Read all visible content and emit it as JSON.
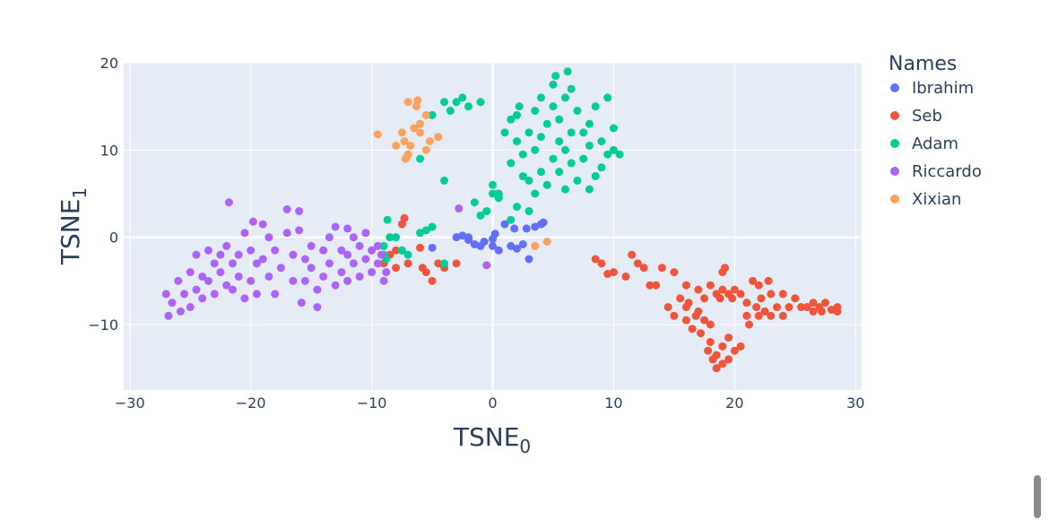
{
  "chart_data": {
    "type": "scatter",
    "title": "",
    "xlabel": "TSNE",
    "xlabel_subscript": "0",
    "ylabel": "TSNE",
    "ylabel_subscript": "1",
    "xlim": [
      -30.5,
      30.5
    ],
    "ylim": [
      -17.5,
      20
    ],
    "xticks": [
      -30,
      -20,
      -10,
      0,
      10,
      20,
      30
    ],
    "xtick_labels": [
      "−30",
      "−20",
      "−10",
      "0",
      "10",
      "20",
      "30"
    ],
    "yticks": [
      -10,
      0,
      10,
      20
    ],
    "ytick_labels": [
      "−10",
      "0",
      "10",
      "20"
    ],
    "grid": true,
    "legend": {
      "title": "Names",
      "placement": "right"
    },
    "plot_background": "#e5ecf6",
    "series": [
      {
        "name": "Ibrahim",
        "color": "#636efa",
        "points": [
          [
            -5,
            -1.2
          ],
          [
            -3,
            0
          ],
          [
            -2.5,
            0.2
          ],
          [
            -2,
            0
          ],
          [
            -1.5,
            -0.8
          ],
          [
            -1,
            -1
          ],
          [
            -0.7,
            -0.5
          ],
          [
            0,
            -1
          ],
          [
            0.2,
            0.4
          ],
          [
            0.5,
            -1.5
          ],
          [
            1,
            1.5
          ],
          [
            1.5,
            -1
          ],
          [
            1.8,
            1
          ],
          [
            2,
            -1.3
          ],
          [
            2.5,
            -0.8
          ],
          [
            2.8,
            1
          ],
          [
            3,
            -2.5
          ],
          [
            3.5,
            1.2
          ],
          [
            4,
            1.5
          ],
          [
            4.2,
            1.7
          ],
          [
            -2,
            -0.3
          ],
          [
            0,
            -0.2
          ]
        ]
      },
      {
        "name": "Seb",
        "color": "#ef553b",
        "points": [
          [
            -9,
            -3
          ],
          [
            -8.5,
            -2
          ],
          [
            -8,
            -1.5
          ],
          [
            -8,
            -3.5
          ],
          [
            -7.5,
            1.5
          ],
          [
            -7.3,
            2.2
          ],
          [
            -7.5,
            -1.5
          ],
          [
            -7,
            -3
          ],
          [
            -6,
            -1.2
          ],
          [
            -5.8,
            -3.5
          ],
          [
            -5.5,
            -4
          ],
          [
            -5,
            -5
          ],
          [
            -4.5,
            -3
          ],
          [
            -4,
            -3.5
          ],
          [
            -3,
            -3
          ],
          [
            8.5,
            -2.5
          ],
          [
            9,
            -3
          ],
          [
            9.5,
            -4.2
          ],
          [
            10,
            -4
          ],
          [
            11,
            -4.5
          ],
          [
            11.5,
            -2
          ],
          [
            12,
            -3
          ],
          [
            12.5,
            -3.5
          ],
          [
            13,
            -5.5
          ],
          [
            13.5,
            -5.5
          ],
          [
            14,
            -3.5
          ],
          [
            14.5,
            -8
          ],
          [
            15,
            -4
          ],
          [
            15,
            -9
          ],
          [
            15.5,
            -7
          ],
          [
            16,
            -5.5
          ],
          [
            16,
            -8
          ],
          [
            16,
            -9.5
          ],
          [
            16.2,
            -7.5
          ],
          [
            16.5,
            -10.5
          ],
          [
            16.8,
            -9
          ],
          [
            17,
            -6
          ],
          [
            17,
            -8.5
          ],
          [
            17.2,
            -11
          ],
          [
            17.5,
            -7
          ],
          [
            17.5,
            -9.5
          ],
          [
            17.8,
            -13
          ],
          [
            18,
            -5.5
          ],
          [
            18,
            -10
          ],
          [
            18,
            -12
          ],
          [
            18.2,
            -14
          ],
          [
            18.5,
            -6.5
          ],
          [
            18.5,
            -13.5
          ],
          [
            18.5,
            -15
          ],
          [
            18.8,
            -7
          ],
          [
            19,
            -4
          ],
          [
            19,
            -6
          ],
          [
            19,
            -12.5
          ],
          [
            19,
            -14.5
          ],
          [
            19.2,
            -3.5
          ],
          [
            19.5,
            -6.5
          ],
          [
            19.5,
            -11.5
          ],
          [
            19.5,
            -14
          ],
          [
            19.8,
            -7
          ],
          [
            20,
            -6
          ],
          [
            20,
            -13
          ],
          [
            20.5,
            -6.5
          ],
          [
            20.5,
            -12.5
          ],
          [
            21,
            -7.5
          ],
          [
            21,
            -9
          ],
          [
            21.2,
            -10
          ],
          [
            21.5,
            -5
          ],
          [
            21.8,
            -8
          ],
          [
            22,
            -5.5
          ],
          [
            22,
            -9
          ],
          [
            22.2,
            -7
          ],
          [
            22.5,
            -8.5
          ],
          [
            22.8,
            -5
          ],
          [
            23,
            -6.5
          ],
          [
            23,
            -9
          ],
          [
            23.5,
            -8
          ],
          [
            24,
            -6.5
          ],
          [
            24,
            -9
          ],
          [
            24.5,
            -8
          ],
          [
            25,
            -7
          ],
          [
            25.5,
            -8
          ],
          [
            26,
            -8
          ],
          [
            26.5,
            -7.5
          ],
          [
            26.5,
            -8.5
          ],
          [
            27,
            -8
          ],
          [
            27.2,
            -8.5
          ],
          [
            27.5,
            -7.5
          ],
          [
            28,
            -8.3
          ],
          [
            28.5,
            -8
          ],
          [
            28.5,
            -8.5
          ]
        ]
      },
      {
        "name": "Adam",
        "color": "#00cc96",
        "points": [
          [
            -9,
            -1
          ],
          [
            -9,
            -2
          ],
          [
            -8.8,
            -2.5
          ],
          [
            -8.7,
            2
          ],
          [
            -8.5,
            0
          ],
          [
            -8,
            0
          ],
          [
            -7.5,
            -1.5
          ],
          [
            -7,
            -2
          ],
          [
            -6,
            0.5
          ],
          [
            -5.5,
            0.8
          ],
          [
            -5,
            1.2
          ],
          [
            -4,
            -3
          ],
          [
            -4,
            6.5
          ],
          [
            -6,
            9
          ],
          [
            -5,
            14
          ],
          [
            -4,
            15.5
          ],
          [
            -3.5,
            14.5
          ],
          [
            -3,
            15.5
          ],
          [
            -2.5,
            16
          ],
          [
            -2,
            15
          ],
          [
            -1,
            15.5
          ],
          [
            -1.5,
            4
          ],
          [
            -1,
            2.5
          ],
          [
            -0.5,
            3
          ],
          [
            0,
            5
          ],
          [
            0,
            6
          ],
          [
            0.5,
            4.5
          ],
          [
            1,
            12
          ],
          [
            1.5,
            13.5
          ],
          [
            1.5,
            8.5
          ],
          [
            2,
            11
          ],
          [
            2,
            14
          ],
          [
            2.2,
            15
          ],
          [
            2.5,
            7
          ],
          [
            2.5,
            9.5
          ],
          [
            3,
            6.5
          ],
          [
            3,
            12
          ],
          [
            3.5,
            5
          ],
          [
            3.5,
            10
          ],
          [
            3.5,
            14.5
          ],
          [
            4,
            7.5
          ],
          [
            4,
            11.5
          ],
          [
            4,
            16
          ],
          [
            4.5,
            6
          ],
          [
            4.5,
            13
          ],
          [
            5,
            9
          ],
          [
            5,
            15
          ],
          [
            5,
            17.5
          ],
          [
            5.2,
            18.5
          ],
          [
            5.5,
            7.5
          ],
          [
            5.5,
            11
          ],
          [
            5.5,
            13.5
          ],
          [
            6,
            5.5
          ],
          [
            6,
            10
          ],
          [
            6,
            16
          ],
          [
            6.2,
            19
          ],
          [
            6.5,
            8.5
          ],
          [
            6.5,
            12
          ],
          [
            6.5,
            17
          ],
          [
            7,
            6.5
          ],
          [
            7,
            14.5
          ],
          [
            7.5,
            9
          ],
          [
            7.5,
            12
          ],
          [
            8,
            5.5
          ],
          [
            8,
            10.5
          ],
          [
            8,
            13
          ],
          [
            8.5,
            7
          ],
          [
            8.5,
            15
          ],
          [
            9,
            8
          ],
          [
            9,
            11
          ],
          [
            9.5,
            9.5
          ],
          [
            9.5,
            16
          ],
          [
            10,
            10
          ],
          [
            10,
            12.5
          ],
          [
            10.5,
            9.5
          ],
          [
            3,
            3
          ],
          [
            2,
            3.5
          ],
          [
            1.5,
            2
          ],
          [
            0.5,
            5
          ]
        ]
      },
      {
        "name": "Riccardo",
        "color": "#ab63fa",
        "points": [
          [
            -27,
            -6.5
          ],
          [
            -26.8,
            -9
          ],
          [
            -26.5,
            -7.5
          ],
          [
            -26,
            -5
          ],
          [
            -25.8,
            -8.5
          ],
          [
            -25.5,
            -6.5
          ],
          [
            -25,
            -4
          ],
          [
            -25,
            -8
          ],
          [
            -24.5,
            -2
          ],
          [
            -24.5,
            -6
          ],
          [
            -24,
            -4.5
          ],
          [
            -24,
            -7
          ],
          [
            -23.5,
            -1.5
          ],
          [
            -23.5,
            -5
          ],
          [
            -23,
            -3
          ],
          [
            -23,
            -6.5
          ],
          [
            -22.5,
            -4
          ],
          [
            -22,
            -1
          ],
          [
            -22,
            -5.5
          ],
          [
            -21.8,
            4
          ],
          [
            -21.5,
            -3
          ],
          [
            -21.5,
            -6
          ],
          [
            -21,
            -2
          ],
          [
            -21,
            -4.5
          ],
          [
            -20.5,
            -7
          ],
          [
            -20.5,
            0.5
          ],
          [
            -20,
            -1.5
          ],
          [
            -20,
            -5
          ],
          [
            -19.8,
            1.8
          ],
          [
            -19.5,
            -3
          ],
          [
            -19.5,
            -6.5
          ],
          [
            -19,
            1.5
          ],
          [
            -19,
            -2.5
          ],
          [
            -18.5,
            0
          ],
          [
            -18.5,
            -4.5
          ],
          [
            -18,
            -1.5
          ],
          [
            -17.5,
            -3.5
          ],
          [
            -17,
            3.2
          ],
          [
            -17,
            0.5
          ],
          [
            -16.5,
            -2
          ],
          [
            -16.5,
            -5
          ],
          [
            -16,
            3
          ],
          [
            -16,
            0.8
          ],
          [
            -15.5,
            -2.5
          ],
          [
            -15.5,
            -5
          ],
          [
            -15,
            -1
          ],
          [
            -15,
            -3.5
          ],
          [
            -14.5,
            -6
          ],
          [
            -14.5,
            -8
          ],
          [
            -14,
            -1.5
          ],
          [
            -14,
            -4.5
          ],
          [
            -13.5,
            0
          ],
          [
            -13.5,
            -3
          ],
          [
            -13,
            -5.5
          ],
          [
            -13,
            1.2
          ],
          [
            -12.5,
            -1.5
          ],
          [
            -12.5,
            -4
          ],
          [
            -12,
            -2
          ],
          [
            -12,
            -5
          ],
          [
            -11.5,
            0
          ],
          [
            -11.5,
            -3
          ],
          [
            -11,
            -1
          ],
          [
            -11,
            -4.5
          ],
          [
            -10.5,
            0.5
          ],
          [
            -10.5,
            -2.5
          ],
          [
            -10,
            -1.5
          ],
          [
            -10,
            -4
          ],
          [
            -9.5,
            -1
          ],
          [
            -9.5,
            -3
          ],
          [
            -9,
            -5
          ],
          [
            -9.2,
            -2
          ],
          [
            -8.8,
            -4
          ],
          [
            -2.8,
            3.3
          ],
          [
            -0.5,
            -3.2
          ],
          [
            -18,
            -6.5
          ],
          [
            -15.8,
            -7.5
          ],
          [
            -22.5,
            -2
          ],
          [
            -12,
            1
          ]
        ]
      },
      {
        "name": "Xixian",
        "color": "#ffa15a",
        "points": [
          [
            -9.5,
            11.8
          ],
          [
            -8,
            10.5
          ],
          [
            -7.5,
            12
          ],
          [
            -7.3,
            11
          ],
          [
            -7,
            9.5
          ],
          [
            -7,
            15.5
          ],
          [
            -6.8,
            10.5
          ],
          [
            -6.5,
            12.5
          ],
          [
            -6.3,
            15
          ],
          [
            -6.2,
            15.7
          ],
          [
            -6,
            13
          ],
          [
            -5.5,
            14
          ],
          [
            -5.5,
            10
          ],
          [
            -5.2,
            11
          ],
          [
            -4.5,
            11.5
          ],
          [
            -7.2,
            9
          ],
          [
            3.5,
            -1
          ],
          [
            4.5,
            -0.5
          ],
          [
            -6,
            12
          ]
        ]
      }
    ]
  }
}
